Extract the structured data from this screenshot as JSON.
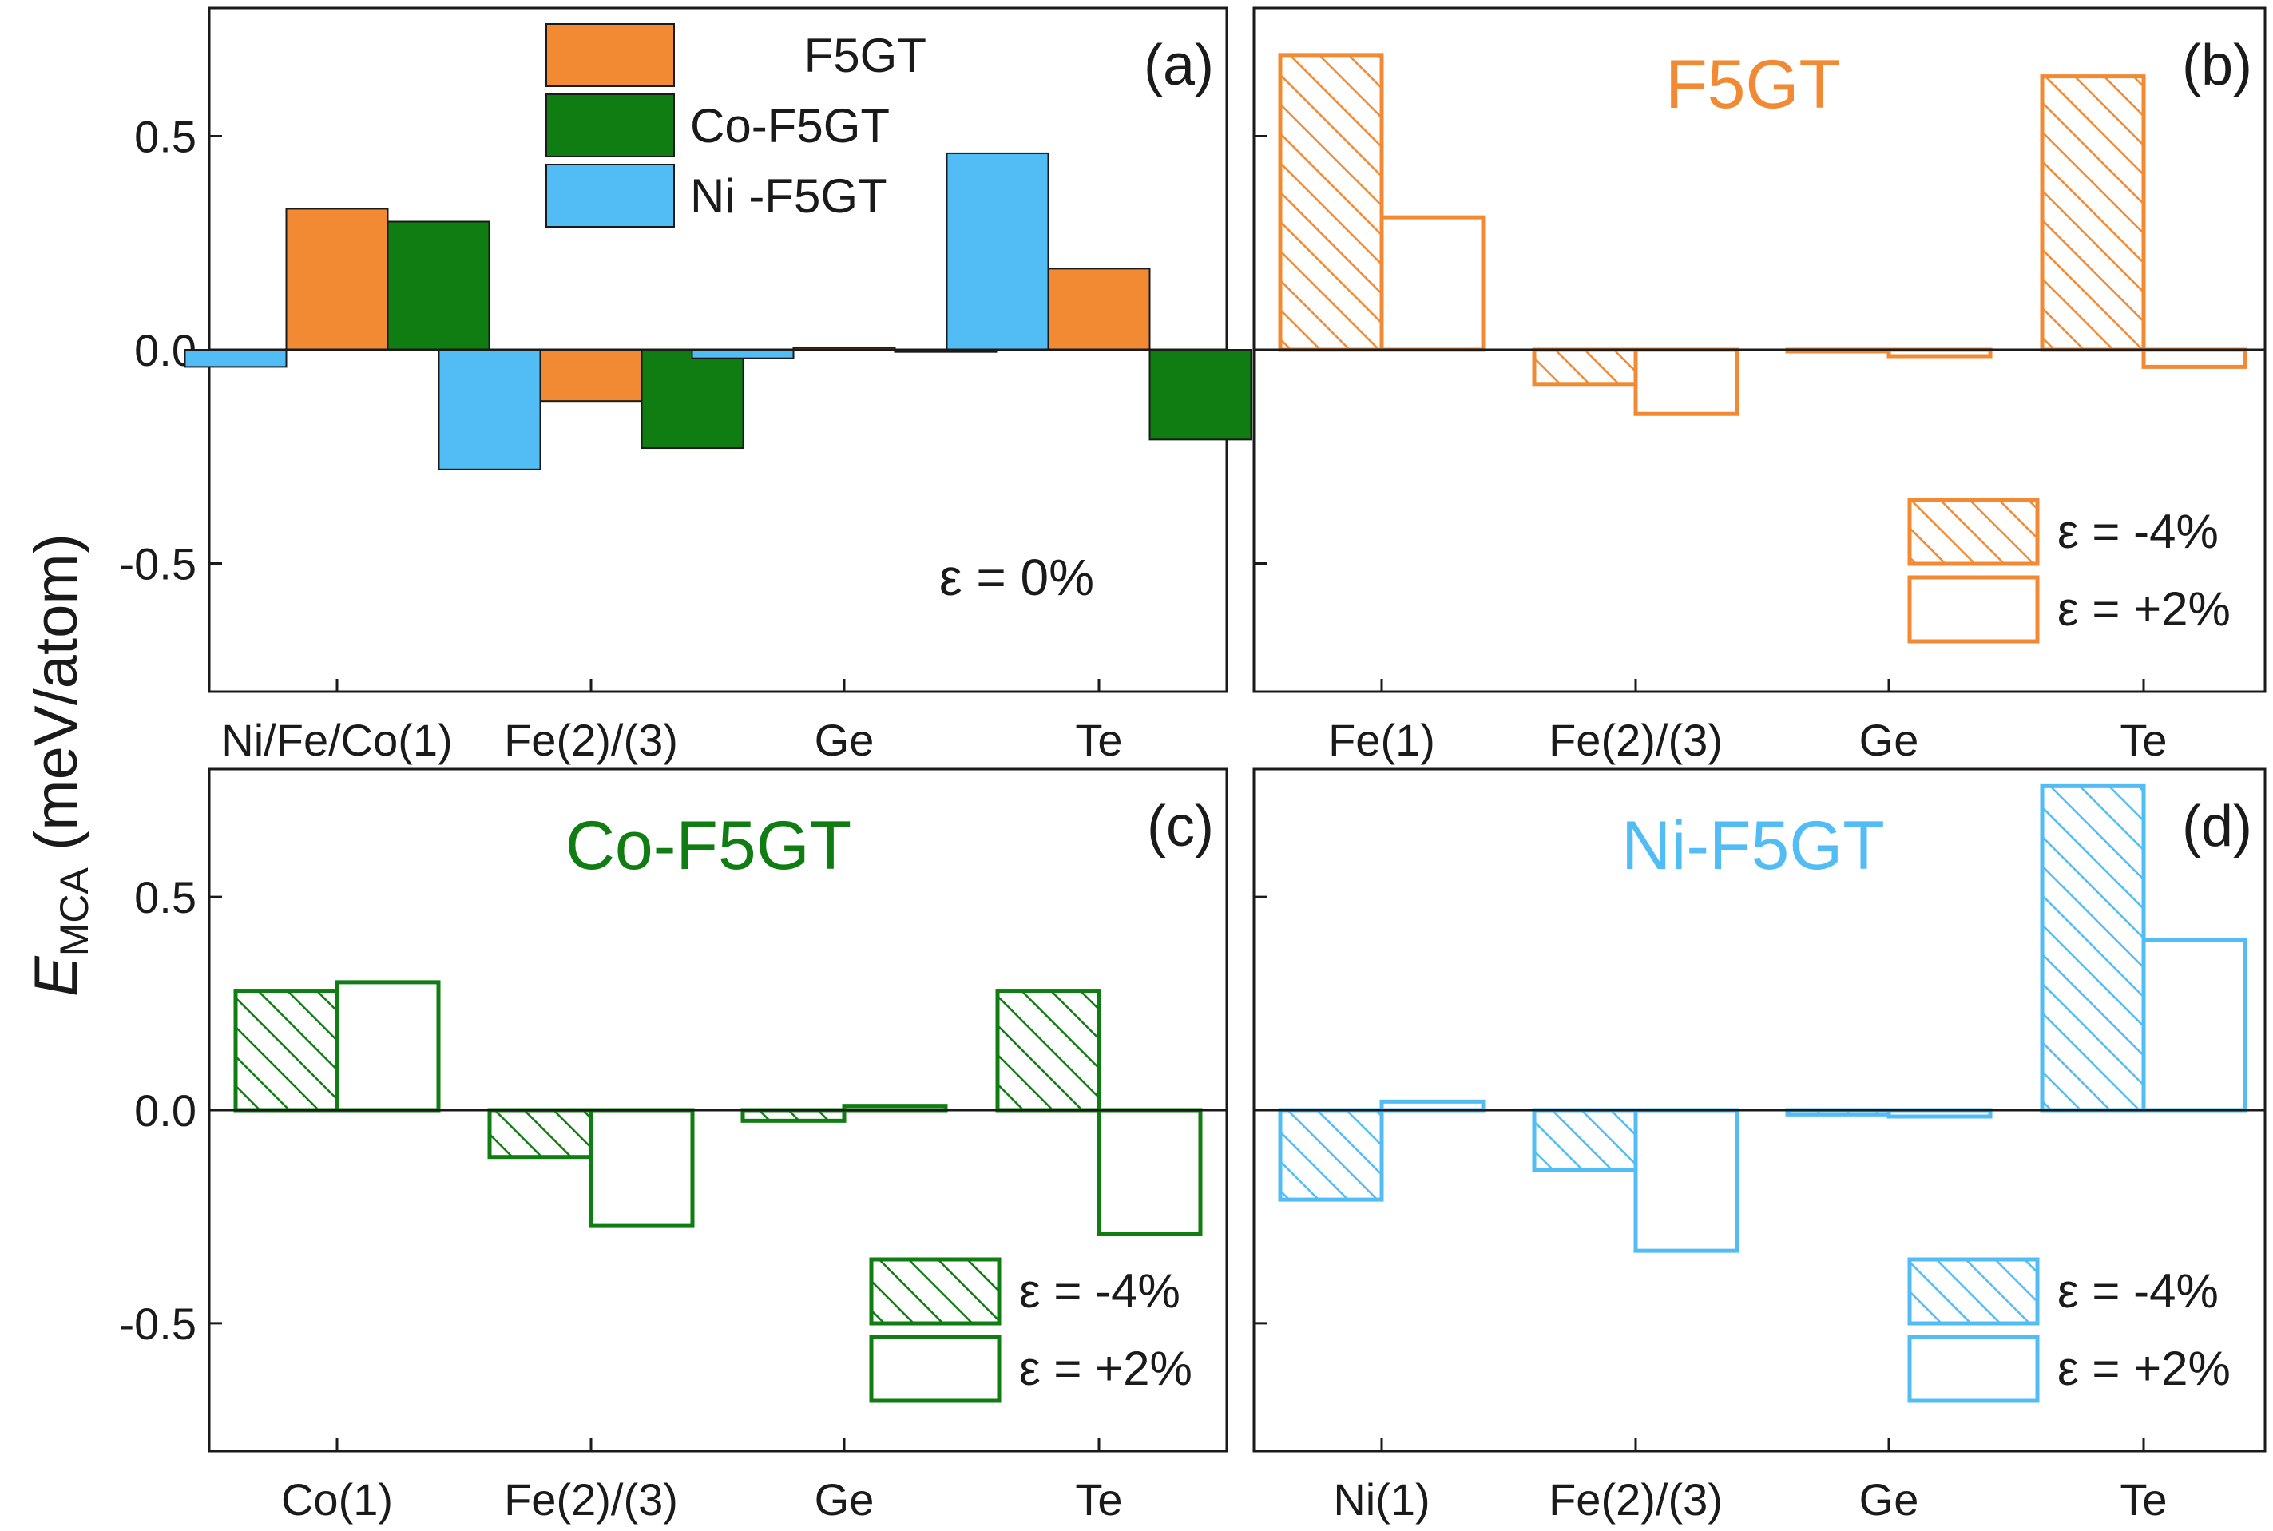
{
  "figure": {
    "ylabel_main": "E",
    "ylabel_sub": "MCA",
    "ylabel_units": " (meV/atom)"
  },
  "colors": {
    "F5GT": "#f28a34",
    "Co-F5GT": "#0f7d12",
    "Ni-F5GT": "#52bdf5",
    "axis": "#1a1a1a"
  },
  "chart_data": [
    {
      "type": "bar",
      "panel": "(a)",
      "categories": [
        "Ni/Fe/Co(1)",
        "Fe(2)/(3)",
        "Ge",
        "Te"
      ],
      "series": [
        {
          "name": "Ni -F5GT",
          "values": [
            -0.04,
            -0.28,
            -0.02,
            0.46
          ]
        },
        {
          "name": "F5GT",
          "values": [
            0.33,
            -0.12,
            0.005,
            0.19
          ]
        },
        {
          "name": "Co-F5GT",
          "values": [
            0.3,
            -0.23,
            -0.005,
            -0.21
          ]
        }
      ],
      "legend": [
        {
          "label": "F5GT",
          "color_key": "F5GT"
        },
        {
          "label": "Co-F5GT",
          "color_key": "Co-F5GT"
        },
        {
          "label": "Ni -F5GT",
          "color_key": "Ni-F5GT"
        }
      ],
      "legend_position": "top-center",
      "annotation": "ε = 0%",
      "yticks": [
        "0.5",
        "0.0",
        "-0.5"
      ],
      "ylim": [
        -0.8,
        0.8
      ],
      "ylabel": "E_MCA (meV/atom)"
    },
    {
      "type": "bar",
      "panel": "(b)",
      "title": "F5GT",
      "color_key": "F5GT",
      "categories": [
        "Fe(1)",
        "Fe(2)/(3)",
        "Ge",
        "Te"
      ],
      "series": [
        {
          "name": "ε = -4%",
          "style": "hatched",
          "values": [
            0.69,
            -0.08,
            0.0,
            0.64
          ]
        },
        {
          "name": "ε = +2%",
          "style": "open",
          "values": [
            0.31,
            -0.15,
            -0.015,
            -0.04
          ]
        }
      ],
      "legend_position": "bottom-right",
      "ylim": [
        -0.8,
        0.8
      ]
    },
    {
      "type": "bar",
      "panel": "(c)",
      "title": "Co-F5GT",
      "color_key": "Co-F5GT",
      "categories": [
        "Co(1)",
        "Fe(2)/(3)",
        "Ge",
        "Te"
      ],
      "series": [
        {
          "name": "ε = -4%",
          "style": "hatched",
          "values": [
            0.28,
            -0.11,
            -0.025,
            0.28
          ]
        },
        {
          "name": "ε = +2%",
          "style": "open",
          "values": [
            0.3,
            -0.27,
            0.01,
            -0.29
          ]
        }
      ],
      "legend_position": "bottom-right",
      "yticks": [
        "0.5",
        "0.0",
        "-0.5"
      ],
      "ylim": [
        -0.8,
        0.8
      ]
    },
    {
      "type": "bar",
      "panel": "(d)",
      "title": "Ni-F5GT",
      "color_key": "Ni-F5GT",
      "categories": [
        "Ni(1)",
        "Fe(2)/(3)",
        "Ge",
        "Te"
      ],
      "series": [
        {
          "name": "ε = -4%",
          "style": "hatched",
          "values": [
            -0.21,
            -0.14,
            -0.01,
            0.76
          ]
        },
        {
          "name": "ε = +2%",
          "style": "open",
          "values": [
            0.02,
            -0.33,
            -0.015,
            0.4
          ]
        }
      ],
      "legend_position": "bottom-right",
      "ylim": [
        -0.8,
        0.8
      ]
    }
  ]
}
